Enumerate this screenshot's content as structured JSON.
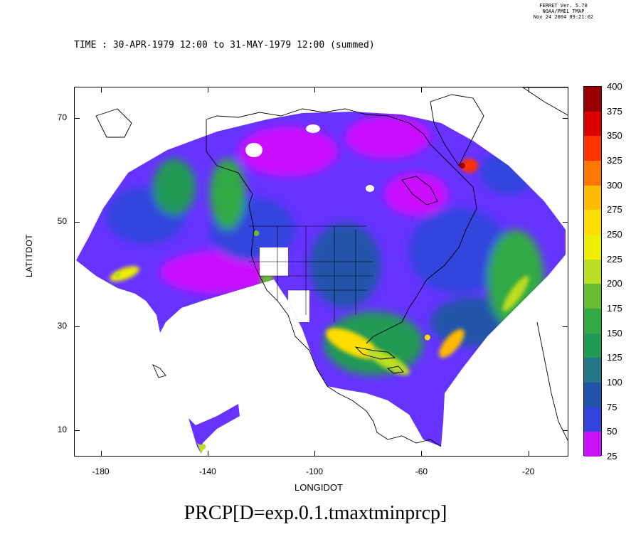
{
  "stamp": {
    "line1": "FERRET Ver. 5.70",
    "line2": "NOAA/PMEL TMAP",
    "line3": "Nov 24 2004 09:21:02"
  },
  "time_label": "TIME : 30-APR-1979 12:00 to 31-MAY-1979 12:00 (summed)",
  "main_title": "PRCP[D=exp.0.1.tmaxtminprcp]",
  "axes": {
    "xlabel": "LONGIDOT",
    "ylabel": "LATITDOT",
    "x_range": [
      -190,
      -5
    ],
    "y_range": [
      5,
      76
    ],
    "x_ticks": [
      "-180",
      "-140",
      "-100",
      "-60",
      "-20"
    ],
    "y_ticks": [
      "70",
      "50",
      "30",
      "10"
    ]
  },
  "colorbar": {
    "levels": [
      "400",
      "375",
      "350",
      "325",
      "300",
      "275",
      "250",
      "225",
      "200",
      "175",
      "150",
      "125",
      "100",
      "75",
      "50",
      "25"
    ],
    "colors": [
      "#990000",
      "#dd0000",
      "#ff3300",
      "#ff7700",
      "#ffbb00",
      "#ffdd00",
      "#eeee00",
      "#bbdd22",
      "#66bb33",
      "#33aa44",
      "#229955",
      "#227788",
      "#2255aa",
      "#3344dd",
      "#6633ff",
      "#cc11ff"
    ]
  },
  "chart_data": {
    "type": "heatmap",
    "title": "PRCP[D=exp.0.1.tmaxtminprcp]",
    "subtitle": "TIME : 30-APR-1979 12:00 to 31-MAY-1979 12:00 (summed)",
    "xlabel": "LONGIDOT",
    "ylabel": "LATITDOT",
    "xlim": [
      -190,
      -5
    ],
    "ylim": [
      5,
      76
    ],
    "colorbar_min": 25,
    "colorbar_max": 400,
    "colorbar_step": 25,
    "features": [
      {
        "lon": -174,
        "lat": 40,
        "value": 225
      },
      {
        "lon": -131,
        "lat": 56,
        "value": 175
      },
      {
        "lon": -122,
        "lat": 48,
        "value": 200
      },
      {
        "lon": -84,
        "lat": 26,
        "value": 250
      },
      {
        "lon": -58,
        "lat": 28,
        "value": 275
      },
      {
        "lon": -45,
        "lat": 61,
        "value": 400
      },
      {
        "lon": -142,
        "lat": 7,
        "value": 225
      }
    ]
  }
}
